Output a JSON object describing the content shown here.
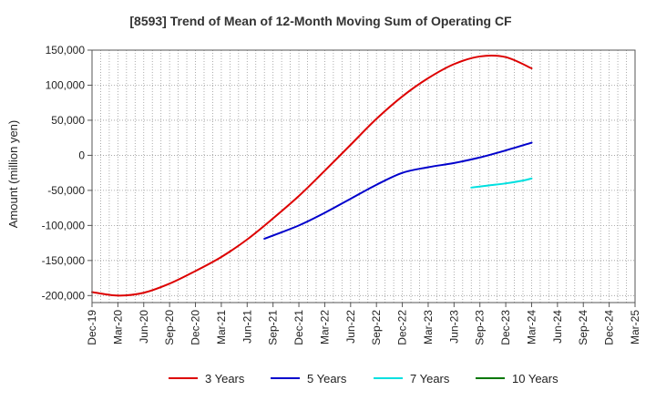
{
  "chart_data": {
    "type": "line",
    "title": "[8593]  Trend of Mean of 12-Month Moving Sum of Operating CF",
    "ylabel": "Amount (million yen)",
    "xlabel": "",
    "ylim": [
      -210000,
      150000
    ],
    "yticks": [
      150000,
      100000,
      50000,
      0,
      -50000,
      -100000,
      -150000,
      -200000
    ],
    "ytick_labels": [
      "150,000",
      "100,000",
      "50,000",
      "0",
      "-50,000",
      "-100,000",
      "-150,000",
      "-200,000"
    ],
    "x_range": [
      0,
      63
    ],
    "xtick_positions": [
      0,
      3,
      6,
      9,
      12,
      15,
      18,
      21,
      24,
      27,
      30,
      33,
      36,
      39,
      42,
      45,
      48,
      51,
      54,
      57,
      60,
      63
    ],
    "xtick_labels": [
      "Dec-19",
      "Mar-20",
      "Jun-20",
      "Sep-20",
      "Dec-20",
      "Mar-21",
      "Jun-21",
      "Sep-21",
      "Dec-21",
      "Mar-22",
      "Jun-22",
      "Sep-22",
      "Dec-22",
      "Mar-23",
      "Jun-23",
      "Sep-23",
      "Dec-23",
      "Mar-24",
      "Jun-24",
      "Sep-24",
      "Dec-24",
      "Mar-25"
    ],
    "grid": true,
    "legend_position": "bottom",
    "series": [
      {
        "name": "3 Years",
        "color": "#dd0000",
        "x": [
          0,
          3,
          6,
          9,
          12,
          15,
          18,
          21,
          24,
          27,
          30,
          33,
          36,
          39,
          42,
          45,
          48,
          51
        ],
        "values": [
          -195000,
          -200000,
          -196000,
          -183000,
          -165000,
          -145000,
          -120000,
          -90000,
          -58000,
          -22000,
          15000,
          52000,
          84000,
          110000,
          130000,
          141000,
          140000,
          124000
        ]
      },
      {
        "name": "5 Years",
        "color": "#0000cc",
        "x": [
          20,
          24,
          27,
          30,
          33,
          36,
          39,
          42,
          45,
          48,
          51
        ],
        "values": [
          -119000,
          -100000,
          -82000,
          -62000,
          -42000,
          -25000,
          -17000,
          -11000,
          -3000,
          7000,
          18000
        ]
      },
      {
        "name": "7 Years",
        "color": "#00e0e0",
        "x": [
          44,
          46,
          48,
          50,
          51
        ],
        "values": [
          -46000,
          -43000,
          -40000,
          -36000,
          -33000
        ]
      },
      {
        "name": "10 Years",
        "color": "#007700",
        "x": [],
        "values": []
      }
    ]
  }
}
